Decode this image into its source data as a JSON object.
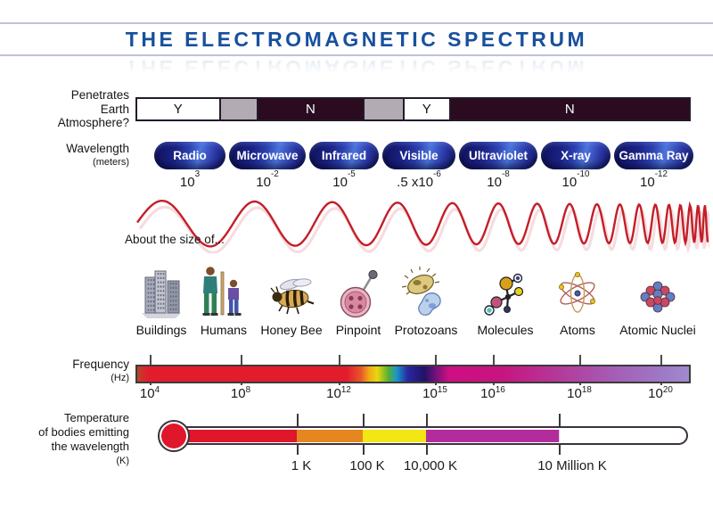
{
  "title": "THE ELECTROMAGNETIC SPECTRUM",
  "colors": {
    "title_blue": "#17509e",
    "wave_red": "#c41e28",
    "atmosphere_dark": "#2a0b20",
    "atmosphere_gray": "#b2abb4",
    "pill_blue_dark": "#10145e",
    "pill_blue_light": "#4c74dc",
    "freq_red": "#e31c2c",
    "freq_magenta": "#ce0e82",
    "freq_lavender": "#a08ad0",
    "thermo_red": "#e0162b",
    "thermo_orange": "#e5871f",
    "thermo_yellow": "#f2e614",
    "thermo_magenta": "#b32c9b"
  },
  "atmosphere": {
    "label_lines": [
      "Penetrates",
      "Earth",
      "Atmosphere?"
    ],
    "segments": [
      {
        "text": "Y",
        "type": "yes"
      },
      {
        "text": "",
        "type": "gray"
      },
      {
        "text": "N",
        "type": "no"
      },
      {
        "text": "",
        "type": "gray"
      },
      {
        "text": "Y",
        "type": "yes"
      },
      {
        "text": "N",
        "type": "no"
      }
    ]
  },
  "wavelength": {
    "label": "Wavelength",
    "sublabel": "(meters)",
    "bands": [
      {
        "name": "Radio",
        "prefix": "",
        "base": "10",
        "exp": "3"
      },
      {
        "name": "Microwave",
        "prefix": "",
        "base": "10",
        "exp": "-2"
      },
      {
        "name": "Infrared",
        "prefix": "",
        "base": "10",
        "exp": "-5"
      },
      {
        "name": "Visible",
        "prefix": ".5 x ",
        "base": "10",
        "exp": "-6"
      },
      {
        "name": "Ultraviolet",
        "prefix": "",
        "base": "10",
        "exp": "-8"
      },
      {
        "name": "X-ray",
        "prefix": "",
        "base": "10",
        "exp": "-10"
      },
      {
        "name": "Gamma Ray",
        "prefix": "",
        "base": "10",
        "exp": "-12"
      }
    ]
  },
  "size_row": {
    "intro": "About the size of...",
    "items": [
      {
        "label": "Buildings",
        "icon": "buildings-icon"
      },
      {
        "label": "Humans",
        "icon": "humans-icon"
      },
      {
        "label": "Honey Bee",
        "icon": "honey-bee-icon"
      },
      {
        "label": "Pinpoint",
        "icon": "pinpoint-icon"
      },
      {
        "label": "Protozoans",
        "icon": "protozoans-icon"
      },
      {
        "label": "Molecules",
        "icon": "molecules-icon"
      },
      {
        "label": "Atoms",
        "icon": "atoms-icon"
      },
      {
        "label": "Atomic Nuclei",
        "icon": "atomic-nuclei-icon"
      }
    ]
  },
  "frequency": {
    "label": "Frequency",
    "sublabel": "(Hz)",
    "ticks": [
      {
        "base": "10",
        "exp": "4"
      },
      {
        "base": "10",
        "exp": "8"
      },
      {
        "base": "10",
        "exp": "12"
      },
      {
        "base": "10",
        "exp": "15"
      },
      {
        "base": "10",
        "exp": "16"
      },
      {
        "base": "10",
        "exp": "18"
      },
      {
        "base": "10",
        "exp": "20"
      }
    ]
  },
  "temperature": {
    "label_lines": [
      "Temperature",
      "of bodies emitting",
      "the wavelength",
      "(K)"
    ],
    "ticks": [
      {
        "label": "1 K"
      },
      {
        "label": "100 K"
      },
      {
        "label": "10,000 K"
      },
      {
        "label": "10 Million K"
      }
    ]
  }
}
